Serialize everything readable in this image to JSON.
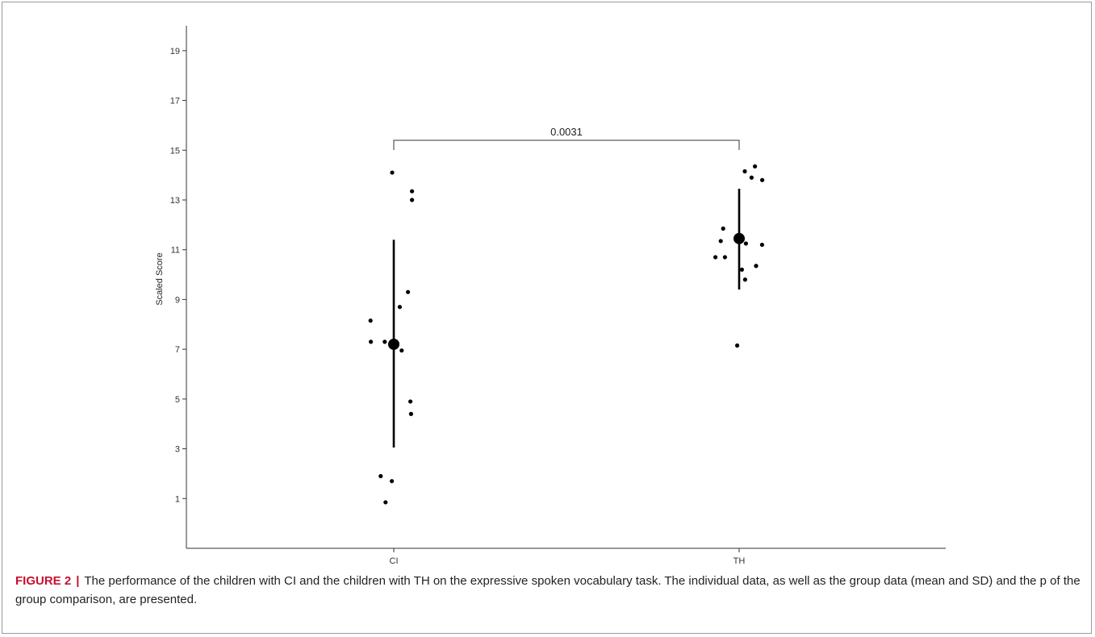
{
  "figure": {
    "label": "FIGURE 2",
    "separator": "|",
    "caption": "The performance of the children with CI and the children with TH on the expressive spoken vocabulary task. The individual data, as well as the group data (mean and SD) and the p of the group comparison, are presented."
  },
  "chart_data": {
    "type": "scatter",
    "title": "",
    "xlabel": "",
    "ylabel": "Scaled Score",
    "ylim": [
      -1.0,
      20.0
    ],
    "yticks": [
      1,
      3,
      5,
      7,
      9,
      11,
      13,
      15,
      17,
      19
    ],
    "categories": [
      "CI",
      "TH"
    ],
    "grid": false,
    "legend": "none",
    "colors": {
      "points": "#000000",
      "axis": "#333333"
    },
    "series": [
      {
        "category": "CI",
        "points": [
          {
            "x": "CI",
            "y": 14.1
          },
          {
            "x": "CI",
            "y": 13.35
          },
          {
            "x": "CI",
            "y": 13.0
          },
          {
            "x": "CI",
            "y": 9.3
          },
          {
            "x": "CI",
            "y": 8.7
          },
          {
            "x": "CI",
            "y": 8.15
          },
          {
            "x": "CI",
            "y": 7.3
          },
          {
            "x": "CI",
            "y": 7.3
          },
          {
            "x": "CI",
            "y": 6.95
          },
          {
            "x": "CI",
            "y": 4.9
          },
          {
            "x": "CI",
            "y": 4.4
          },
          {
            "x": "CI",
            "y": 1.9
          },
          {
            "x": "CI",
            "y": 1.7
          },
          {
            "x": "CI",
            "y": 0.85
          }
        ],
        "jitter": [
          -0.01,
          0.113,
          0.113,
          0.088,
          0.037,
          -0.144,
          -0.142,
          -0.056,
          0.049,
          0.103,
          0.107,
          -0.081,
          -0.012,
          -0.051
        ],
        "mean": 7.2,
        "sd_range": [
          3.05,
          11.4
        ]
      },
      {
        "category": "TH",
        "points": [
          {
            "x": "TH",
            "y": 14.35
          },
          {
            "x": "TH",
            "y": 14.15
          },
          {
            "x": "TH",
            "y": 13.9
          },
          {
            "x": "TH",
            "y": 13.8
          },
          {
            "x": "TH",
            "y": 11.85
          },
          {
            "x": "TH",
            "y": 11.35
          },
          {
            "x": "TH",
            "y": 11.25
          },
          {
            "x": "TH",
            "y": 11.2
          },
          {
            "x": "TH",
            "y": 10.7
          },
          {
            "x": "TH",
            "y": 10.7
          },
          {
            "x": "TH",
            "y": 10.35
          },
          {
            "x": "TH",
            "y": 10.2
          },
          {
            "x": "TH",
            "y": 9.8
          },
          {
            "x": "TH",
            "y": 7.15
          }
        ],
        "jitter": [
          0.098,
          0.035,
          0.077,
          0.143,
          -0.099,
          -0.114,
          0.042,
          0.142,
          -0.147,
          -0.088,
          0.105,
          0.017,
          0.037,
          -0.012
        ],
        "mean": 11.45,
        "sd_range": [
          9.4,
          13.45
        ]
      }
    ],
    "comparison": {
      "from": "CI",
      "to": "TH",
      "label": "0.0031",
      "y": 15.4
    }
  }
}
